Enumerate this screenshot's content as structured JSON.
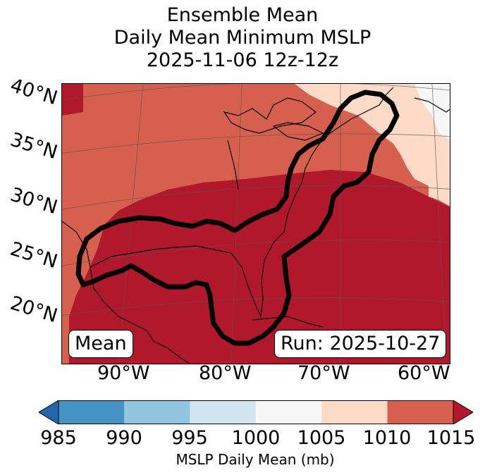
{
  "title": {
    "line1": "Ensemble Mean",
    "line2": "Daily Mean Minimum MSLP",
    "line3": "2025-11-06 12z-12z"
  },
  "map": {
    "lat_labels": [
      "40°N",
      "35°N",
      "30°N",
      "25°N",
      "20°N"
    ],
    "lon_labels": [
      "90°W",
      "80°W",
      "70°W",
      "60°W"
    ],
    "mean_box": "Mean",
    "run_box": "Run: 2025-10-27",
    "field_colors": {
      "1010_1015": "#d6604d",
      "over_1015": "#b2182b",
      "1005_1010": "#fddbc7",
      "1000_1005": "#f7f7f7"
    },
    "contour_color": "#000000"
  },
  "colorbar": {
    "label": "MSLP Daily Mean (mb)",
    "ticks": [
      "985",
      "990",
      "995",
      "1000",
      "1005",
      "1010",
      "1015"
    ],
    "colors": [
      "#4393c3",
      "#92c5de",
      "#d1e5f0",
      "#f7f7f7",
      "#fddbc7",
      "#d6604d"
    ],
    "under_color": "#2166ac",
    "over_color": "#b2182b"
  }
}
